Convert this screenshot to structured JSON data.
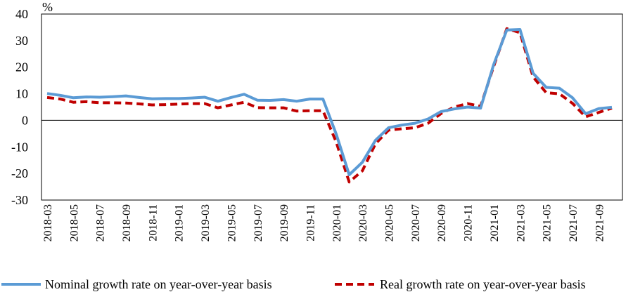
{
  "chart_data": {
    "type": "line",
    "ylabel": "%",
    "ylim": [
      -30,
      40
    ],
    "yticks": [
      "40",
      "30",
      "20",
      "10",
      "0",
      "-10",
      "-20",
      "-30"
    ],
    "grid": false,
    "legend_position": "bottom",
    "x": [
      "2018-03",
      "2018-04",
      "2018-05",
      "2018-06",
      "2018-07",
      "2018-08",
      "2018-09",
      "2018-10",
      "2018-11",
      "2018-12",
      "2019-01",
      "2019-02",
      "2019-03",
      "2019-04",
      "2019-05",
      "2019-06",
      "2019-07",
      "2019-08",
      "2019-09",
      "2019-10",
      "2019-11",
      "2019-12",
      "2020-01",
      "2020-02",
      "2020-03",
      "2020-04",
      "2020-05",
      "2020-06",
      "2020-07",
      "2020-08",
      "2020-09",
      "2020-10",
      "2020-11",
      "2020-12",
      "2021-01",
      "2021-02",
      "2021-03",
      "2021-04",
      "2021-05",
      "2021-06",
      "2021-07",
      "2021-08",
      "2021-09",
      "2021-10"
    ],
    "xticks_shown": [
      "2018-03",
      "2018-05",
      "2018-07",
      "2018-09",
      "2018-11",
      "2019-01",
      "2019-03",
      "2019-05",
      "2019-07",
      "2019-09",
      "2019-11",
      "2020-01",
      "2020-03",
      "2020-05",
      "2020-07",
      "2020-09",
      "2020-11",
      "2021-01",
      "2021-03",
      "2021-05",
      "2021-07",
      "2021-09"
    ],
    "series": [
      {
        "name": "Nominal growth rate on year-over-year basis",
        "color": "#5b9bd5",
        "style": "solid",
        "values": [
          10.1,
          9.4,
          8.5,
          8.8,
          8.7,
          8.9,
          9.2,
          8.6,
          8.1,
          8.2,
          8.2,
          8.4,
          8.7,
          7.2,
          8.6,
          9.8,
          7.6,
          7.5,
          7.8,
          7.2,
          8.0,
          8.0,
          -5.0,
          -20.5,
          -15.8,
          -7.5,
          -2.8,
          -1.8,
          -1.1,
          0.5,
          3.3,
          4.3,
          5.0,
          4.6,
          21.0,
          34.0,
          34.2,
          17.7,
          12.4,
          12.1,
          8.5,
          2.5,
          4.4,
          4.9
        ]
      },
      {
        "name": "Real growth rate on year-over-year basis",
        "color": "#c00000",
        "style": "dashed",
        "values": [
          8.6,
          8.0,
          6.8,
          7.0,
          6.6,
          6.6,
          6.5,
          6.2,
          5.8,
          5.9,
          6.1,
          6.3,
          6.3,
          4.7,
          5.8,
          6.8,
          4.8,
          4.7,
          4.7,
          3.5,
          3.6,
          3.6,
          -8.0,
          -23.2,
          -19.0,
          -8.8,
          -3.7,
          -3.2,
          -2.8,
          -1.1,
          2.6,
          5.0,
          6.3,
          5.3,
          20.3,
          34.5,
          33.0,
          16.3,
          10.4,
          10.0,
          6.4,
          1.3,
          3.0,
          4.6
        ]
      }
    ]
  }
}
